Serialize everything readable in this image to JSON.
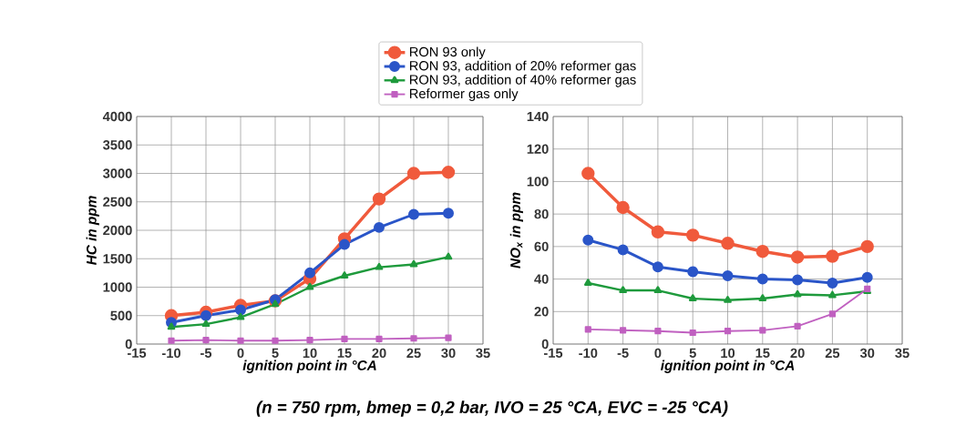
{
  "chart_data": [
    {
      "type": "line",
      "xlabel": "ignition point in °CA",
      "ylabel": "HC in ppm",
      "x": [
        -10,
        -5,
        0,
        5,
        10,
        15,
        20,
        25,
        30
      ],
      "xlim": [
        -15,
        35
      ],
      "xticks": [
        -15,
        -10,
        -5,
        0,
        5,
        10,
        15,
        20,
        25,
        30,
        35
      ],
      "ylim": [
        0,
        4000
      ],
      "yticks": [
        0,
        500,
        1000,
        1500,
        2000,
        2500,
        3000,
        3500,
        4000
      ],
      "grid": true,
      "legend": "top",
      "annotations": [
        "(n = 750 rpm, bmep = 0,2 bar, IVO = 25 °CA, EVC = -25 °CA)"
      ],
      "series": [
        {
          "name": "RON 93 only",
          "color": "#f05a3c",
          "marker": "circle",
          "values": [
            500,
            560,
            680,
            760,
            1150,
            1850,
            2550,
            3000,
            3020
          ]
        },
        {
          "name": "RON 93, addition of 20% reformer gas",
          "color": "#2a55c8",
          "marker": "circle",
          "values": [
            380,
            500,
            600,
            780,
            1250,
            1750,
            2050,
            2280,
            2300
          ]
        },
        {
          "name": "RON 93, addition of 40% reformer gas",
          "color": "#1e9a3c",
          "marker": "triangle",
          "values": [
            300,
            350,
            470,
            700,
            1000,
            1200,
            1350,
            1400,
            1530
          ]
        },
        {
          "name": "Reformer gas only",
          "color": "#c060c0",
          "marker": "square",
          "values": [
            60,
            70,
            60,
            60,
            70,
            90,
            90,
            100,
            110
          ]
        }
      ]
    },
    {
      "type": "line",
      "xlabel": "ignition point in °CA",
      "ylabel": "NO$_{x}$ in ppm",
      "x": [
        -10,
        -5,
        0,
        5,
        10,
        15,
        20,
        25,
        30
      ],
      "xlim": [
        -15,
        35
      ],
      "xticks": [
        -15,
        -10,
        -5,
        0,
        5,
        10,
        15,
        20,
        25,
        30,
        35
      ],
      "ylim": [
        0,
        140
      ],
      "yticks": [
        0,
        20,
        40,
        60,
        80,
        100,
        120,
        140
      ],
      "grid": true,
      "series": [
        {
          "color": "#f05a3c",
          "marker": "circle",
          "values": [
            105,
            84,
            69,
            67,
            62,
            57,
            53.5,
            54,
            60
          ]
        },
        {
          "color": "#2a55c8",
          "marker": "circle",
          "values": [
            64,
            58,
            47.5,
            44.5,
            42,
            40,
            39.5,
            37.5,
            41
          ]
        },
        {
          "color": "#1e9a3c",
          "marker": "triangle",
          "values": [
            37.5,
            33,
            33,
            28,
            27,
            28,
            30.5,
            30,
            32.5
          ]
        },
        {
          "color": "#c060c0",
          "marker": "square",
          "values": [
            9,
            8.5,
            8,
            7,
            8,
            8.5,
            11,
            18.5,
            34
          ]
        }
      ]
    }
  ]
}
